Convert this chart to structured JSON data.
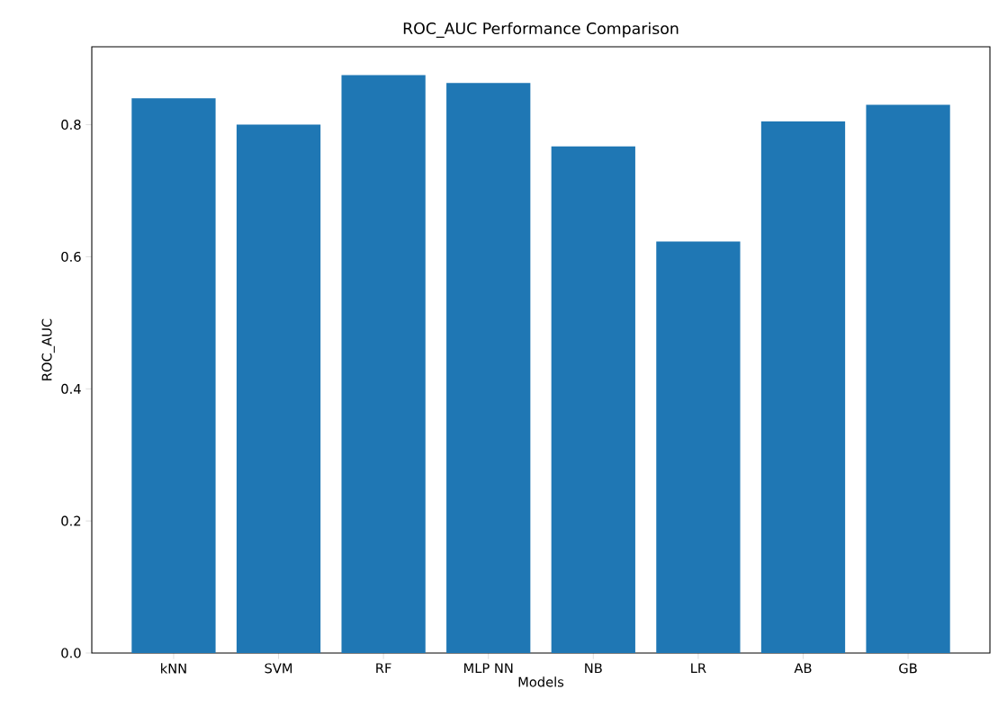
{
  "chart_data": {
    "type": "bar",
    "title": "ROC_AUC Performance Comparison",
    "xlabel": "Models",
    "ylabel": "ROC_AUC",
    "categories": [
      "kNN",
      "SVM",
      "RF",
      "MLP NN",
      "NB",
      "LR",
      "AB",
      "GB"
    ],
    "values": [
      0.84,
      0.8,
      0.875,
      0.863,
      0.767,
      0.623,
      0.805,
      0.83
    ],
    "color": "#1f77b4",
    "ylim": [
      0,
      0.918
    ],
    "yticks": [
      {
        "value": 0,
        "label": "0.0"
      },
      {
        "value": 0.2,
        "label": "0.2"
      },
      {
        "value": 0.4,
        "label": "0.4"
      },
      {
        "value": 0.6,
        "label": "0.6"
      },
      {
        "value": 0.8,
        "label": "0.8"
      }
    ]
  }
}
